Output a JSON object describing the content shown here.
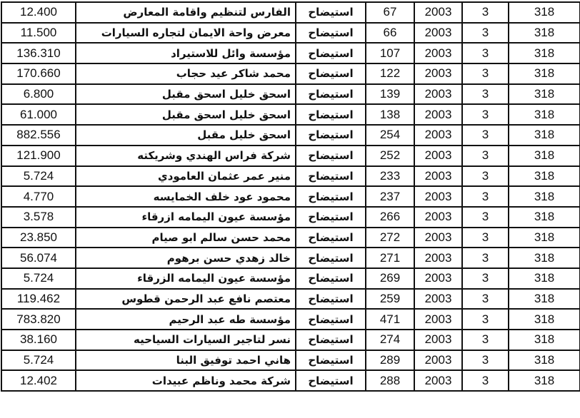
{
  "rows": [
    {
      "amount": "12.400",
      "name": "الفارس لتنظيم واقامة المعارض",
      "type": "استيضاح",
      "number": "67",
      "year": "2003",
      "c3": "3",
      "c318": "318"
    },
    {
      "amount": "11.500",
      "name": "معرض واحة الايمان لتجاره السيارات",
      "type": "استيضاح",
      "number": "66",
      "year": "2003",
      "c3": "3",
      "c318": "318"
    },
    {
      "amount": "136.310",
      "name": "مؤسسة وائل للاستيراد",
      "type": "استيضاح",
      "number": "107",
      "year": "2003",
      "c3": "3",
      "c318": "318"
    },
    {
      "amount": "170.660",
      "name": "محمد شاكر عيد حجاب",
      "type": "استيضاح",
      "number": "122",
      "year": "2003",
      "c3": "3",
      "c318": "318"
    },
    {
      "amount": "6.800",
      "name": "اسحق خليل اسحق مقبل",
      "type": "استيضاح",
      "number": "139",
      "year": "2003",
      "c3": "3",
      "c318": "318"
    },
    {
      "amount": "61.000",
      "name": "اسحق خليل اسحق مقبل",
      "type": "استيضاح",
      "number": "138",
      "year": "2003",
      "c3": "3",
      "c318": "318"
    },
    {
      "amount": "882.556",
      "name": "اسحق خليل مقبل",
      "type": "استيضاح",
      "number": "254",
      "year": "2003",
      "c3": "3",
      "c318": "318"
    },
    {
      "amount": "121.900",
      "name": "شركة فراس الهندي وشريكته",
      "type": "استيضاح",
      "number": "252",
      "year": "2003",
      "c3": "3",
      "c318": "318"
    },
    {
      "amount": "5.724",
      "name": "منير عمر عثمان العامودي",
      "type": "استيضاح",
      "number": "233",
      "year": "2003",
      "c3": "3",
      "c318": "318"
    },
    {
      "amount": "4.770",
      "name": "محمود عود خلف الخمايسه",
      "type": "استيضاح",
      "number": "237",
      "year": "2003",
      "c3": "3",
      "c318": "318"
    },
    {
      "amount": "3.578",
      "name": "مؤسسة عيون اليمامه ازرقاء",
      "type": "استيضاح",
      "number": "266",
      "year": "2003",
      "c3": "3",
      "c318": "318"
    },
    {
      "amount": "23.850",
      "name": "محمد حسن سالم ابو صيام",
      "type": "استيضاح",
      "number": "272",
      "year": "2003",
      "c3": "3",
      "c318": "318"
    },
    {
      "amount": "56.074",
      "name": "خالد زهدي حسن برهوم",
      "type": "استيضاح",
      "number": "271",
      "year": "2003",
      "c3": "3",
      "c318": "318"
    },
    {
      "amount": "5.724",
      "name": "مؤسسة عيون اليمامه الزرقاء",
      "type": "استيضاح",
      "number": "269",
      "year": "2003",
      "c3": "3",
      "c318": "318"
    },
    {
      "amount": "119.462",
      "name": "معتصم نافع عبد الرحمن قطوس",
      "type": "استيضاح",
      "number": "259",
      "year": "2003",
      "c3": "3",
      "c318": "318"
    },
    {
      "amount": "783.820",
      "name": "مؤسسة طه عبد الرحيم",
      "type": "استيضاح",
      "number": "471",
      "year": "2003",
      "c3": "3",
      "c318": "318"
    },
    {
      "amount": "38.160",
      "name": "نسر لتاجير السيارات السياحيه",
      "type": "استيضاح",
      "number": "274",
      "year": "2003",
      "c3": "3",
      "c318": "318"
    },
    {
      "amount": "5.724",
      "name": "هاني احمد توفيق البنا",
      "type": "استيضاح",
      "number": "289",
      "year": "2003",
      "c3": "3",
      "c318": "318"
    },
    {
      "amount": "12.402",
      "name": "شركة محمد وناظم عبيدات",
      "type": "استيضاح",
      "number": "288",
      "year": "2003",
      "c3": "3",
      "c318": "318"
    }
  ]
}
